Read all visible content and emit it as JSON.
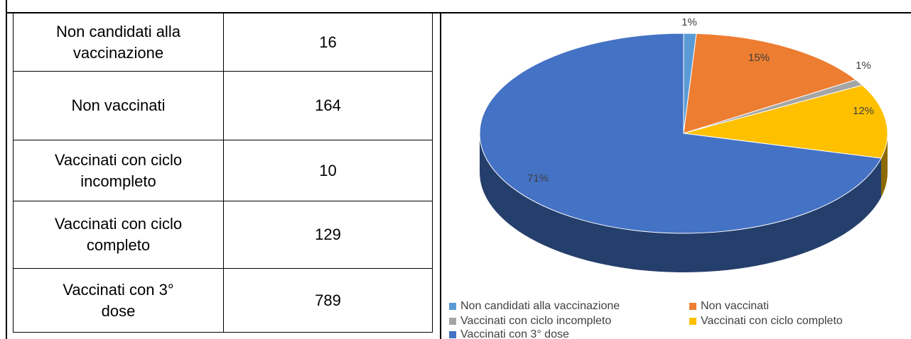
{
  "table": {
    "rows": [
      {
        "label": [
          "Non candidati alla",
          "vaccinazione"
        ],
        "value": "16"
      },
      {
        "label": [
          "Non vaccinati"
        ],
        "value": "164"
      },
      {
        "label": [
          "Vaccinati con ciclo",
          "incompleto"
        ],
        "value": "10"
      },
      {
        "label": [
          "Vaccinati con ciclo",
          "completo"
        ],
        "value": "129"
      },
      {
        "label": [
          "Vaccinati con 3°",
          "dose"
        ],
        "value": "789"
      }
    ]
  },
  "chart_data": {
    "type": "pie",
    "categories": [
      "Non candidati alla vaccinazione",
      "Non vaccinati",
      "Vaccinati con ciclo incompleto",
      "Vaccinati con ciclo completo",
      "Vaccinati con 3° dose"
    ],
    "values": [
      1,
      15,
      1,
      12,
      71
    ],
    "value_labels": [
      "1%",
      "15%",
      "1%",
      "12%",
      "71%"
    ],
    "colors": [
      "#5b9bd5",
      "#ed7d31",
      "#a5a5a5",
      "#ffc000",
      "#4472c4"
    ],
    "legend": "bottom"
  }
}
